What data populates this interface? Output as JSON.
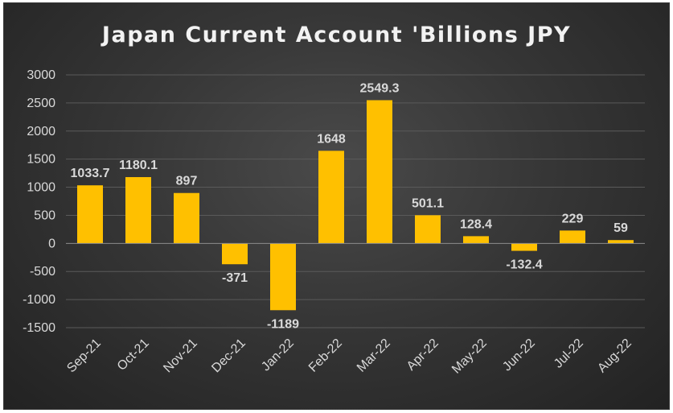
{
  "chart_data": {
    "type": "bar",
    "title": "Japan Current Account 'Billions JPY",
    "xlabel": "",
    "ylabel": "",
    "categories": [
      "Sep-21",
      "Oct-21",
      "Nov-21",
      "Dec-21",
      "Jan-22",
      "Feb-22",
      "Mar-22",
      "Apr-22",
      "May-22",
      "Jun-22",
      "Jul-22",
      "Aug-22"
    ],
    "values": [
      1033.7,
      1180.1,
      897,
      -371,
      -1189,
      1648,
      2549.3,
      501.1,
      128.4,
      -132.4,
      229,
      59
    ],
    "data_labels": [
      "1033.7",
      "1180.1",
      "897",
      "-371",
      "-1189",
      "1648",
      "2549.3",
      "501.1",
      "128.4",
      "-132.4",
      "229",
      "59"
    ],
    "ylim": [
      -1500,
      3000
    ],
    "yticks": [
      3000,
      2500,
      2000,
      1500,
      1000,
      500,
      0,
      -500,
      -1000,
      -1500
    ],
    "grid": true,
    "legend": "none",
    "colors": {
      "bar": "#FFC000",
      "grid": "#5a5a5a",
      "axis": "#8c8c8c",
      "text": "#d9d9d9"
    }
  }
}
